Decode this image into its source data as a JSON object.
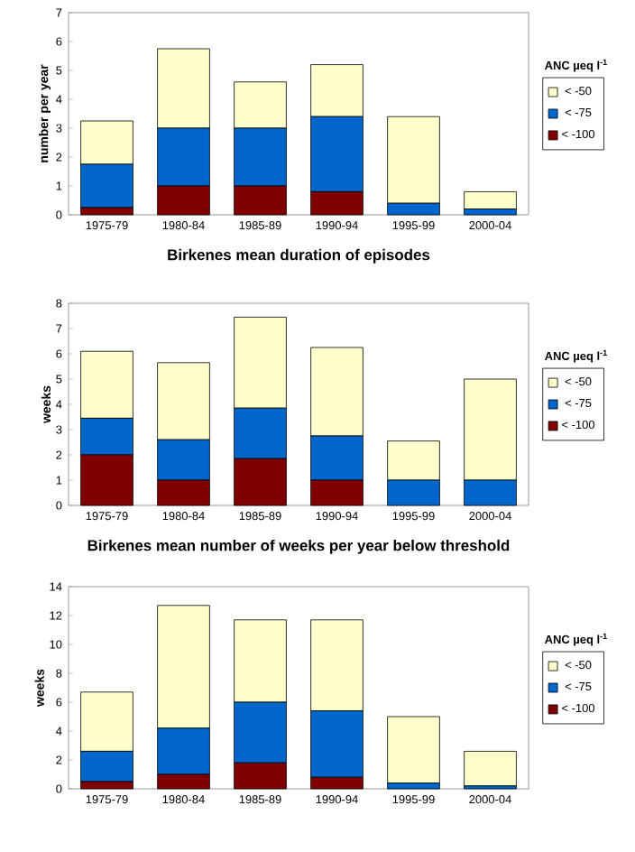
{
  "chart_data": [
    {
      "type": "bar",
      "stacked": true,
      "xlabel": "Birkenes mean duration of episodes",
      "ylabel": "number per year",
      "legend_title": "ANC µeq l$^{-1}$",
      "legend": "right",
      "categories": [
        "1975-79",
        "1980-84",
        "1985-89",
        "1990-94",
        "1995-99",
        "2000-04"
      ],
      "ylim": [
        0,
        7
      ],
      "yticks": [
        0,
        1,
        2,
        3,
        4,
        5,
        6,
        7
      ],
      "series": [
        {
          "name": "< -100",
          "color": "#800000",
          "values": [
            0.25,
            1.0,
            1.0,
            0.8,
            0,
            0
          ]
        },
        {
          "name": "< -75",
          "color": "#0066cc",
          "values": [
            1.5,
            2.0,
            2.0,
            2.6,
            0.4,
            0.2
          ]
        },
        {
          "name": "< -50",
          "color": "#ffffcc",
          "values": [
            1.5,
            2.75,
            1.6,
            1.8,
            3.0,
            0.6
          ]
        }
      ]
    },
    {
      "type": "bar",
      "stacked": true,
      "xlabel": "Birkenes mean number of weeks per year below threshold",
      "ylabel": "weeks",
      "legend_title": "ANC µeq l$^{-1}$",
      "legend": "right",
      "categories": [
        "1975-79",
        "1980-84",
        "1985-89",
        "1990-94",
        "1995-99",
        "2000-04"
      ],
      "ylim": [
        0,
        8
      ],
      "yticks": [
        0,
        1,
        2,
        3,
        4,
        5,
        6,
        7,
        8
      ],
      "series": [
        {
          "name": "< -100",
          "color": "#800000",
          "values": [
            2.0,
            1.0,
            1.85,
            1.0,
            0,
            0
          ]
        },
        {
          "name": "< -75",
          "color": "#0066cc",
          "values": [
            1.45,
            1.6,
            2.0,
            1.75,
            1.0,
            1.0
          ]
        },
        {
          "name": "< -50",
          "color": "#ffffcc",
          "values": [
            2.65,
            3.05,
            3.6,
            3.5,
            1.55,
            4.0
          ]
        }
      ]
    },
    {
      "type": "bar",
      "stacked": true,
      "ylabel": "weeks",
      "legend_title": "ANC µeq l$^{-1}$",
      "legend": "right",
      "categories": [
        "1975-79",
        "1980-84",
        "1985-89",
        "1990-94",
        "1995-99",
        "2000-04"
      ],
      "ylim": [
        0,
        14
      ],
      "yticks": [
        0,
        2,
        4,
        6,
        8,
        10,
        12,
        14
      ],
      "series": [
        {
          "name": "< -100",
          "color": "#800000",
          "values": [
            0.5,
            1.0,
            1.8,
            0.8,
            0,
            0
          ]
        },
        {
          "name": "< -75",
          "color": "#0066cc",
          "values": [
            2.1,
            3.2,
            4.2,
            4.6,
            0.4,
            0.2
          ]
        },
        {
          "name": "< -50",
          "color": "#ffffcc",
          "values": [
            4.1,
            8.5,
            5.7,
            6.3,
            4.6,
            2.4
          ]
        }
      ]
    }
  ]
}
